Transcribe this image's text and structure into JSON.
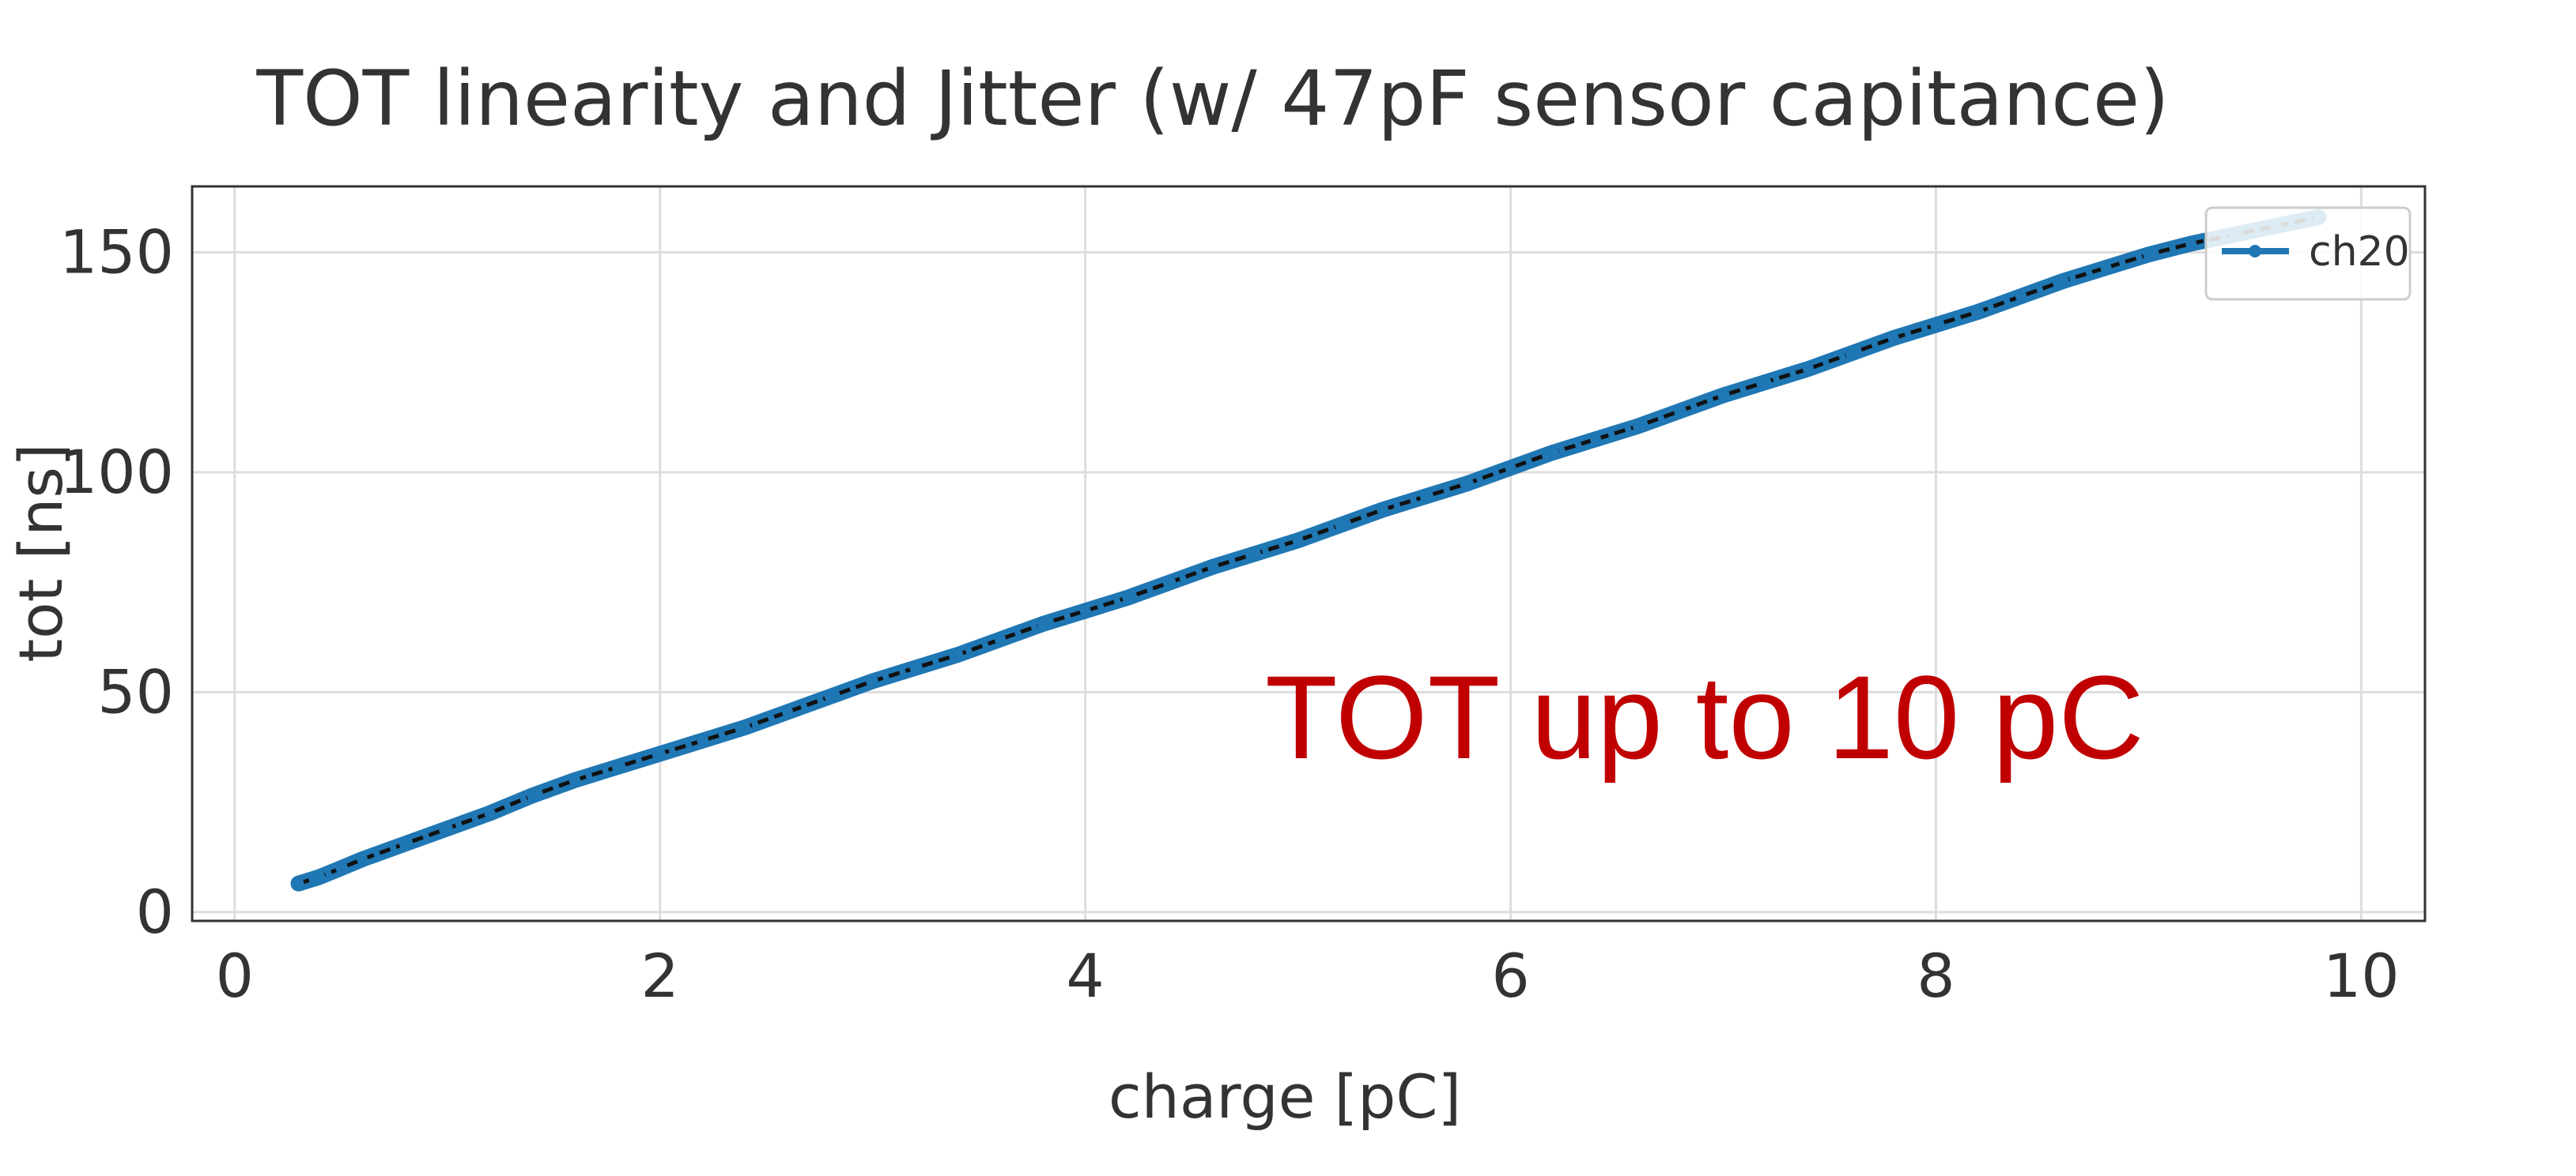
{
  "chart_data": {
    "type": "line",
    "title": "TOT linearity and Jitter (w/ 47pF sensor capitance)",
    "xlabel": "charge [pC]",
    "ylabel": "tot [ns]",
    "xlim": [
      -0.2,
      10.3
    ],
    "ylim": [
      -2,
      165
    ],
    "x_ticks": [
      0,
      2,
      4,
      6,
      8,
      10
    ],
    "y_ticks": [
      0,
      50,
      100,
      150
    ],
    "grid": true,
    "legend": {
      "location": "top-right",
      "entries": [
        "ch20"
      ]
    },
    "annotation": "TOT up to 10 pC",
    "colors": {
      "series": "#1f77b4",
      "fit": "#111111",
      "annotation": "#c00000",
      "grid": "#dddddd"
    },
    "series": [
      {
        "name": "ch20",
        "x": [
          0.3,
          0.4,
          0.5,
          0.6,
          0.8,
          1.0,
          1.2,
          1.4,
          1.6,
          1.8,
          2.0,
          2.2,
          2.4,
          2.6,
          2.8,
          3.0,
          3.2,
          3.4,
          3.6,
          3.8,
          4.0,
          4.2,
          4.4,
          4.6,
          4.8,
          5.0,
          5.2,
          5.4,
          5.6,
          5.8,
          6.0,
          6.2,
          6.4,
          6.6,
          6.8,
          7.0,
          7.2,
          7.4,
          7.6,
          7.8,
          8.0,
          8.2,
          8.4,
          8.6,
          8.8,
          9.0,
          9.2,
          9.4,
          9.6,
          9.8
        ],
        "y": [
          6.5,
          8,
          10,
          12,
          15.5,
          19,
          22.5,
          26.5,
          30,
          33,
          36,
          39,
          42,
          45.5,
          49,
          52.5,
          55.5,
          58.5,
          62,
          65.5,
          68.5,
          71.5,
          75,
          78.5,
          81.5,
          84.5,
          88,
          91.5,
          94.5,
          97.5,
          101,
          104.5,
          107.5,
          110.5,
          114,
          117.5,
          120.5,
          123.5,
          127,
          130.5,
          133.5,
          136.5,
          140,
          143.5,
          146.5,
          149.5,
          152,
          154,
          156,
          158
        ]
      }
    ]
  }
}
